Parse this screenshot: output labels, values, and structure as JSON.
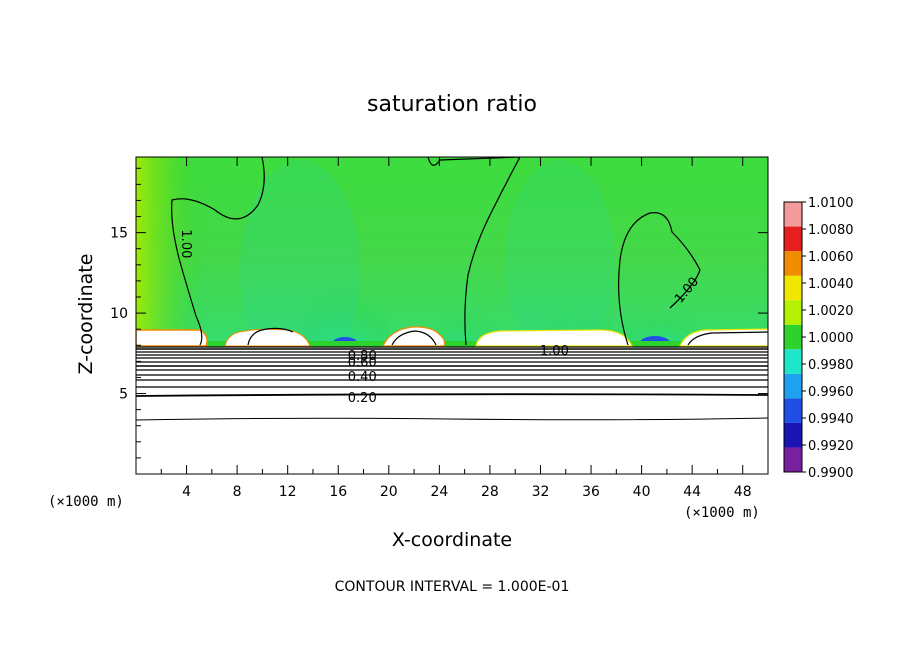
{
  "chart_data": {
    "type": "heatmap",
    "title": "saturation ratio",
    "xlabel": "X-coordinate",
    "ylabel": "Z-coordinate",
    "x_unit_label": "(×1000 m)",
    "xlim": [
      0,
      50
    ],
    "ylim": [
      0,
      19.7
    ],
    "x_ticks": [
      4,
      8,
      12,
      16,
      20,
      24,
      28,
      32,
      36,
      40,
      44,
      48
    ],
    "x_tick_labels": [
      "4",
      "8",
      "12",
      "16",
      "20",
      "24",
      "28",
      "32",
      "36",
      "40",
      "44",
      "48"
    ],
    "y_ticks": [
      5,
      10,
      15
    ],
    "y_tick_labels": [
      "5",
      "10",
      "15"
    ],
    "colorbar": {
      "levels": [
        0.99,
        0.992,
        0.994,
        0.996,
        0.998,
        1.0,
        1.002,
        1.004,
        1.006,
        1.008,
        1.01
      ],
      "labels": [
        "0.9900",
        "0.9920",
        "0.9940",
        "0.9960",
        "0.9980",
        "1.0000",
        "1.0020",
        "1.0040",
        "1.0060",
        "1.0080",
        "1.0100"
      ],
      "colors": [
        "#7a1fa0",
        "#1a14b4",
        "#1f4fe6",
        "#1ea2f0",
        "#1ee6c8",
        "#2dd22d",
        "#b4f000",
        "#f0e600",
        "#f08c00",
        "#e61e1e",
        "#f59a9a"
      ]
    },
    "contour_labels": [
      {
        "text": "1.00",
        "x": 3.9,
        "y": 14.3,
        "rotate": 90
      },
      {
        "text": "1.00",
        "x": 43.6,
        "y": 11.4,
        "rotate": -50
      },
      {
        "text": "1.00",
        "x": 33.1,
        "y": 7.6,
        "rotate": 0
      },
      {
        "text": "0.80",
        "x": 17.9,
        "y": 7.3,
        "rotate": 0
      },
      {
        "text": "0.60",
        "x": 17.9,
        "y": 6.9,
        "rotate": 0
      },
      {
        "text": "0.40",
        "x": 17.9,
        "y": 6.0,
        "rotate": 0
      },
      {
        "text": "0.20",
        "x": 17.9,
        "y": 4.7,
        "rotate": 0
      }
    ],
    "contour_interval_text": "CONTOUR INTERVAL = 1.000E-01"
  }
}
